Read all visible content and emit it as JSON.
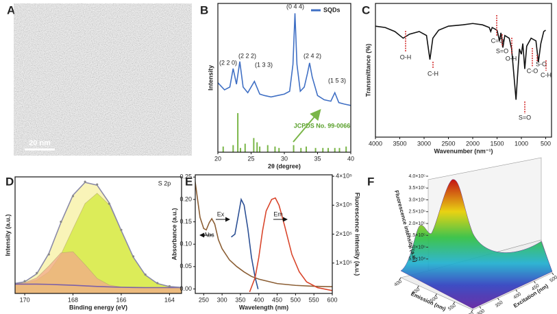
{
  "chart_data": [
    {
      "type": "image",
      "panel_label": "A",
      "scale_bar": "20 nm"
    },
    {
      "type": "line",
      "panel_label": "B",
      "xlabel": "2θ (degree)",
      "ylabel": "Intensity",
      "xlim": [
        20,
        40
      ],
      "ylim": [
        0,
        105
      ],
      "xticks": [
        20,
        25,
        30,
        35,
        40
      ],
      "legend": "upper right",
      "series": [
        {
          "name": "SQDs",
          "color": "#3f6fc4",
          "x": [
            20,
            21,
            21.8,
            22.3,
            22.8,
            23.3,
            23.8,
            24.5,
            25.5,
            26.3,
            27,
            28,
            29,
            30,
            30.8,
            31.3,
            31.6,
            31.9,
            32.4,
            33,
            33.5,
            33.8,
            34.2,
            35,
            36,
            37,
            37.6,
            38.2,
            39,
            40
          ],
          "values": [
            49,
            44,
            46,
            59,
            48,
            64,
            46,
            42,
            50,
            41,
            40,
            39,
            40,
            41,
            43,
            62,
            98,
            62,
            43,
            46,
            56,
            63,
            53,
            40,
            37,
            36,
            42,
            35,
            34,
            33
          ]
        }
      ],
      "reference_lines": {
        "color": "#7ab648",
        "x": [
          20.8,
          22.3,
          23.0,
          23.4,
          24.1,
          25.4,
          25.9,
          26.3,
          27.5,
          28.6,
          29.2,
          31.4,
          32.5,
          33.3,
          34.7,
          35.8,
          36.6,
          37.6,
          38.3,
          39.3
        ],
        "values": [
          4,
          5,
          27.6,
          3,
          6,
          10,
          7,
          4,
          5,
          4,
          3,
          5,
          3,
          4,
          3,
          3,
          3,
          3,
          3,
          4
        ]
      },
      "annotations": [
        "(2 2 0)",
        "(2 2 2)",
        "(1 3 3)",
        "(0 4 4)",
        "(2 4 2)",
        "(1 5 3)",
        "JCPDS No. 99-0066"
      ]
    },
    {
      "type": "line",
      "panel_label": "C",
      "xlabel": "Wavenumber (nm⁻¹)",
      "ylabel": "Transmittance (%)",
      "xlim": [
        4000,
        380
      ],
      "ylim": [
        0,
        100
      ],
      "xticks": [
        4000,
        3500,
        3000,
        2500,
        2000,
        1500,
        1000,
        500
      ],
      "series": [
        {
          "color": "#111111",
          "x": [
            4000,
            3800,
            3600,
            3430,
            3300,
            3100,
            2950,
            2880,
            2820,
            2700,
            2500,
            2200,
            2000,
            1800,
            1660,
            1630,
            1600,
            1500,
            1450,
            1420,
            1380,
            1340,
            1250,
            1200,
            1150,
            1110,
            1080,
            1040,
            1000,
            970,
            930,
            890,
            800,
            700,
            650,
            600,
            540,
            500
          ],
          "values": [
            83,
            82,
            79,
            74,
            77,
            79,
            76,
            58,
            74,
            80,
            83,
            84,
            85,
            84,
            82,
            79,
            82,
            80,
            72,
            78,
            67,
            76,
            74,
            66,
            45,
            28,
            45,
            66,
            62,
            70,
            51,
            68,
            74,
            72,
            56,
            70,
            79,
            80
          ]
        }
      ],
      "annotations": [
        "O-H",
        "C-H",
        "C=O",
        "S=O",
        "O-H",
        "S=O",
        "C-O",
        "S-O",
        "C-H"
      ]
    },
    {
      "type": "line",
      "panel_label": "D",
      "xlabel": "Binding energy (eV)",
      "ylabel": "Intensity (a.u.)",
      "xlim": [
        170.4,
        163.5
      ],
      "ylim": [
        0,
        100
      ],
      "xticks": [
        170,
        168,
        166,
        164
      ],
      "series": [
        {
          "color": "#f7f0a0",
          "fill": true,
          "x": [
            171,
            170.5,
            170,
            169.5,
            169,
            168.5,
            168,
            167.5,
            167,
            166.5,
            166,
            165.5,
            165,
            164.5,
            164,
            163.5,
            163
          ],
          "values": [
            8,
            8.3,
            10,
            16.9,
            34.3,
            60.8,
            84.3,
            95.3,
            92.9,
            77.8,
            54,
            31.1,
            15.8,
            8.5,
            5.9,
            5.2,
            5
          ]
        },
        {
          "color": "#d2ea3a",
          "fill": true,
          "x": [
            171,
            170.5,
            170,
            169.5,
            169,
            168.5,
            168,
            167.5,
            167,
            166.5,
            166,
            165.5,
            165,
            164.5,
            164,
            163.5,
            163
          ],
          "values": [
            8,
            8.2,
            8.9,
            11.5,
            18.6,
            33.4,
            55.5,
            77.1,
            86,
            76.2,
            53.8,
            31.1,
            15.8,
            8.5,
            5.9,
            5.2,
            5
          ]
        },
        {
          "color": "#f2a98a",
          "fill": true,
          "x": [
            171,
            170.5,
            170,
            169.5,
            169,
            168.5,
            168,
            167.5,
            167,
            166.5,
            166,
            165.5,
            165,
            164.5,
            164,
            163.5,
            163
          ],
          "values": [
            8,
            8.1,
            9.1,
            13.4,
            23.5,
            34.8,
            35.8,
            24.7,
            12.9,
            7.2,
            5.5,
            5.1,
            5,
            5,
            5,
            5,
            5
          ]
        },
        {
          "color": "#7a5fa8",
          "x": [
            171,
            170.5,
            170,
            169.5,
            169,
            168.5,
            168,
            167.5,
            167,
            166.5,
            166,
            165.5,
            165,
            164.5,
            164,
            163.5,
            163
          ],
          "values": [
            8,
            8,
            8,
            8,
            7.8,
            7.4,
            7,
            6.5,
            6,
            5.6,
            5.3,
            5.1,
            5,
            5,
            5,
            5,
            5
          ]
        },
        {
          "color": "#8a8aa8",
          "x": [
            171,
            170.5,
            170,
            169.5,
            169,
            168.5,
            168,
            167.5,
            167,
            166.5,
            166,
            165.5,
            165,
            164.5,
            164,
            163.5,
            163
          ],
          "values": [
            8,
            8.3,
            10,
            16.9,
            34.3,
            60.8,
            84.3,
            95.3,
            92.9,
            77.8,
            54,
            31.1,
            15.8,
            8.5,
            5.9,
            5.2,
            5
          ]
        },
        {
          "color": "#888888",
          "style": "dotted",
          "x": [
            171,
            170.5,
            170,
            169.5,
            169,
            168.5,
            168,
            167.5,
            167,
            166.5,
            166,
            165.5,
            165,
            164.5,
            164,
            163.5,
            163
          ],
          "values": [
            8.5,
            8.6,
            10.5,
            17.5,
            33.5,
            61.5,
            83.5,
            95.8,
            93.5,
            77,
            54.5,
            31.8,
            16.2,
            8.9,
            6.2,
            5.4,
            5.1
          ]
        }
      ],
      "annotations": [
        "S 2p"
      ]
    },
    {
      "type": "line",
      "panel_label": "E",
      "xlabel": "Wavelength (nm)",
      "ylabel": "Absorbance (a.u.)",
      "y2label": "Fluorescence intensity (a.u.)",
      "xlim": [
        227,
        600
      ],
      "ylim": [
        -0.01,
        0.255
      ],
      "y2lim": [
        -5000,
        405000
      ],
      "xticks": [
        250,
        300,
        350,
        400,
        450,
        500,
        550,
        600
      ],
      "yticks": [
        {
          "value": 0,
          "label": "0.00"
        },
        0.05,
        {
          "value": 0.1,
          "label": "0.10"
        },
        0.15,
        {
          "value": 0.2,
          "label": "0.20"
        },
        0.25
      ],
      "y2ticks": [
        {
          "value": 100000,
          "label": "1×10⁵"
        },
        {
          "value": 200000,
          "label": "2×10⁵"
        },
        {
          "value": 300000,
          "label": "3×10⁵"
        },
        {
          "value": 400000,
          "label": "4×10⁵"
        }
      ],
      "series": [
        {
          "color": "#8b5e34",
          "x": [
            225,
            230,
            240,
            250,
            257,
            265,
            272,
            280,
            290,
            300,
            320,
            340,
            360,
            380,
            400,
            450,
            500,
            550,
            600
          ],
          "values": [
            0.25,
            0.22,
            0.16,
            0.135,
            0.132,
            0.148,
            0.157,
            0.145,
            0.11,
            0.09,
            0.065,
            0.05,
            0.038,
            0.028,
            0.022,
            0.012,
            0.008,
            0.006,
            0.005
          ]
        },
        {
          "color": "#2b4f94",
          "axis": "y2",
          "x": [
            325,
            335,
            345,
            352,
            360,
            370,
            380,
            390,
            398
          ],
          "values": [
            190000,
            200000,
            270000,
            320000,
            300000,
            220000,
            120000,
            50000,
            10000
          ]
        },
        {
          "color": "#d9452b",
          "axis": "y2",
          "x": [
            375,
            390,
            400,
            410,
            420,
            435,
            445,
            455,
            470,
            490,
            510,
            530,
            560,
            600
          ],
          "values": [
            0,
            50000,
            120000,
            210000,
            280000,
            320000,
            325000,
            300000,
            230000,
            130000,
            70000,
            35000,
            15000,
            5000
          ]
        }
      ],
      "annotations": [
        "Abs",
        "Ex",
        "Em"
      ]
    },
    {
      "type": "surface3d",
      "panel_label": "F",
      "xlabel": "Emission (nm)",
      "ylabel": "Excitation (nm)",
      "zlabel": "Fluorescence intensity (a.u.)",
      "xlim": [
        400,
        600
      ],
      "ylim": [
        300,
        500
      ],
      "zlim": [
        0,
        400000
      ],
      "xticks": [
        400,
        450,
        500,
        550,
        600
      ],
      "yticks": [
        300,
        350,
        400,
        450,
        500
      ],
      "zticks": [
        {
          "value": 50000,
          "label": "5.0×10⁴"
        },
        {
          "value": 100000,
          "label": "1.0×10⁵"
        },
        {
          "value": 150000,
          "label": "1.5×10⁵"
        },
        {
          "value": 200000,
          "label": "2.0×10⁵"
        },
        {
          "value": 250000,
          "label": "2.5×10⁵"
        },
        {
          "value": 300000,
          "label": "3.0×10⁵"
        },
        {
          "value": 350000,
          "label": "3.5×10⁵"
        },
        {
          "value": 400000,
          "label": "4.0×10⁵"
        }
      ]
    }
  ]
}
